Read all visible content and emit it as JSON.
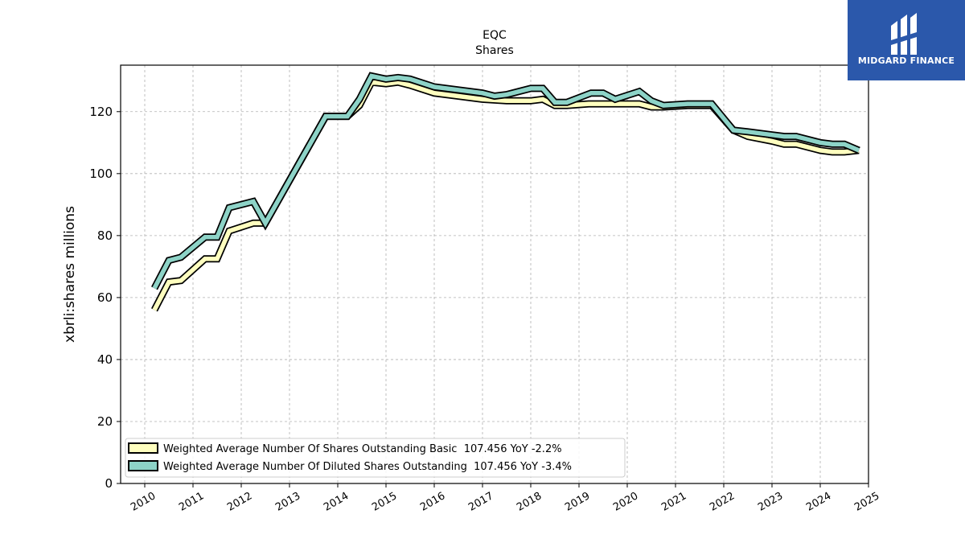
{
  "logo": {
    "text": "MIDGARD FINANCE",
    "background": "#2b58ab"
  },
  "chart_data": {
    "type": "line",
    "title": "EQC",
    "subtitle": "Shares",
    "ylabel": "xbrli:shares millions",
    "xlabel": "",
    "xlim": [
      2009.5,
      2025.0
    ],
    "ylim": [
      0,
      135
    ],
    "x_ticks": [
      "2010",
      "2011",
      "2012",
      "2013",
      "2014",
      "2015",
      "2016",
      "2017",
      "2018",
      "2019",
      "2020",
      "2021",
      "2022",
      "2023",
      "2024",
      "2025"
    ],
    "y_ticks": [
      "0",
      "20",
      "40",
      "60",
      "80",
      "100",
      "120"
    ],
    "grid": true,
    "legend_position": "lower-left",
    "series": [
      {
        "name": "Weighted Average Number Of Shares Outstanding Basic  107.456 YoY -2.2%",
        "color": "#ffffbf",
        "points": [
          [
            2010.2,
            56
          ],
          [
            2010.5,
            65
          ],
          [
            2010.75,
            65.5
          ],
          [
            2011.25,
            72.5
          ],
          [
            2011.5,
            72.5
          ],
          [
            2011.75,
            81.5
          ],
          [
            2012.25,
            84
          ],
          [
            2012.5,
            84
          ],
          [
            2013.75,
            118.5
          ],
          [
            2014.2,
            118.5
          ],
          [
            2014.45,
            122
          ],
          [
            2014.7,
            129.5
          ],
          [
            2015.0,
            129
          ],
          [
            2015.25,
            129.5
          ],
          [
            2015.5,
            128.5
          ],
          [
            2016.0,
            126
          ],
          [
            2016.5,
            125
          ],
          [
            2017.0,
            124
          ],
          [
            2017.5,
            123.5
          ],
          [
            2018.0,
            123.5
          ],
          [
            2018.25,
            124
          ],
          [
            2018.5,
            122
          ],
          [
            2018.75,
            122
          ],
          [
            2019.2,
            122.5
          ],
          [
            2019.5,
            122.5
          ],
          [
            2019.75,
            122.5
          ],
          [
            2020.25,
            122.5
          ],
          [
            2020.5,
            121.5
          ],
          [
            2020.75,
            121.5
          ],
          [
            2021.25,
            122
          ],
          [
            2021.75,
            122
          ],
          [
            2022.2,
            114
          ],
          [
            2022.5,
            112
          ],
          [
            2023.0,
            110.5
          ],
          [
            2023.25,
            109.5
          ],
          [
            2023.5,
            109.5
          ],
          [
            2024.0,
            107.5
          ],
          [
            2024.25,
            107
          ],
          [
            2024.5,
            107
          ],
          [
            2024.8,
            107.5
          ]
        ]
      },
      {
        "name": "Weighted Average Number Of Diluted Shares Outstanding  107.456 YoY -3.4%",
        "color": "#8dd3c7",
        "points": [
          [
            2010.2,
            63
          ],
          [
            2010.5,
            72
          ],
          [
            2010.75,
            73
          ],
          [
            2011.25,
            79.5
          ],
          [
            2011.5,
            79.5
          ],
          [
            2011.75,
            89
          ],
          [
            2012.25,
            91
          ],
          [
            2012.5,
            84
          ],
          [
            2013.75,
            118.5
          ],
          [
            2014.2,
            118.5
          ],
          [
            2014.45,
            124
          ],
          [
            2014.7,
            131.5
          ],
          [
            2015.0,
            130.5
          ],
          [
            2015.25,
            131
          ],
          [
            2015.5,
            130.5
          ],
          [
            2016.0,
            128
          ],
          [
            2016.5,
            127
          ],
          [
            2017.0,
            126
          ],
          [
            2017.25,
            125
          ],
          [
            2017.5,
            125.5
          ],
          [
            2018.0,
            127.5
          ],
          [
            2018.25,
            127.5
          ],
          [
            2018.5,
            123
          ],
          [
            2018.75,
            123
          ],
          [
            2019.25,
            126
          ],
          [
            2019.5,
            126
          ],
          [
            2019.75,
            124
          ],
          [
            2020.25,
            126.5
          ],
          [
            2020.5,
            123.5
          ],
          [
            2020.75,
            122
          ],
          [
            2021.25,
            122.5
          ],
          [
            2021.75,
            122.5
          ],
          [
            2022.2,
            114
          ],
          [
            2022.5,
            113.5
          ],
          [
            2023.0,
            112.5
          ],
          [
            2023.25,
            112
          ],
          [
            2023.5,
            112
          ],
          [
            2024.0,
            110
          ],
          [
            2024.25,
            109.5
          ],
          [
            2024.5,
            109.5
          ],
          [
            2024.8,
            107.5
          ]
        ]
      }
    ]
  }
}
